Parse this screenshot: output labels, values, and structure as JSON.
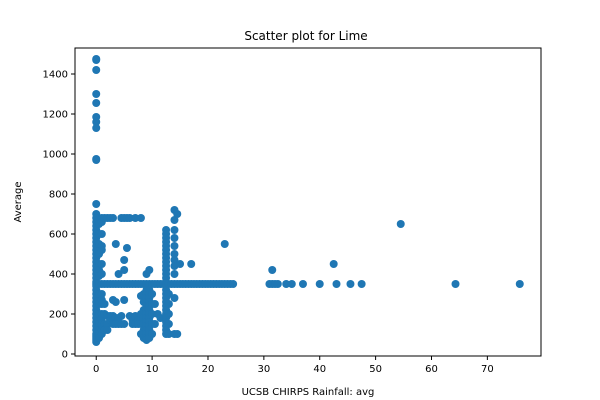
{
  "chart_data": {
    "type": "scatter",
    "title": "Scatter plot for Lime",
    "xlabel": "UCSB CHIRPS Rainfall: avg",
    "ylabel": "Average",
    "xlim": [
      -3.8,
      79.6
    ],
    "ylim": [
      -10,
      1530
    ],
    "xticks": [
      0,
      10,
      20,
      30,
      40,
      50,
      60,
      70
    ],
    "yticks": [
      0,
      200,
      400,
      600,
      800,
      1000,
      1200,
      1400
    ],
    "grid": false,
    "marker_color": "#1f77b4",
    "points": [
      [
        0,
        1475
      ],
      [
        0,
        1470
      ],
      [
        0,
        1420
      ],
      [
        0,
        1300
      ],
      [
        0,
        1255
      ],
      [
        0,
        1185
      ],
      [
        0,
        1160
      ],
      [
        0,
        1130
      ],
      [
        0,
        975
      ],
      [
        0,
        970
      ],
      [
        0,
        750
      ],
      [
        0,
        700
      ],
      [
        0,
        680
      ],
      [
        0,
        660
      ],
      [
        0,
        640
      ],
      [
        0,
        620
      ],
      [
        0,
        600
      ],
      [
        0,
        580
      ],
      [
        0,
        560
      ],
      [
        0,
        540
      ],
      [
        0,
        520
      ],
      [
        0,
        500
      ],
      [
        0,
        480
      ],
      [
        0,
        460
      ],
      [
        0,
        440
      ],
      [
        0,
        420
      ],
      [
        0,
        400
      ],
      [
        0,
        380
      ],
      [
        0,
        360
      ],
      [
        0,
        350
      ],
      [
        0,
        340
      ],
      [
        0,
        320
      ],
      [
        0,
        300
      ],
      [
        0,
        280
      ],
      [
        0,
        260
      ],
      [
        0,
        240
      ],
      [
        0,
        220
      ],
      [
        0,
        200
      ],
      [
        0,
        180
      ],
      [
        0,
        160
      ],
      [
        0,
        140
      ],
      [
        0,
        120
      ],
      [
        0,
        100
      ],
      [
        0,
        90
      ],
      [
        0,
        80
      ],
      [
        0,
        70
      ],
      [
        0,
        60
      ],
      [
        0.5,
        650
      ],
      [
        0.5,
        600
      ],
      [
        0.5,
        550
      ],
      [
        0.5,
        500
      ],
      [
        0.5,
        450
      ],
      [
        0.5,
        420
      ],
      [
        0.5,
        390
      ],
      [
        0.5,
        350
      ],
      [
        0.5,
        300
      ],
      [
        0.5,
        250
      ],
      [
        0.5,
        200
      ],
      [
        0.5,
        150
      ],
      [
        0.5,
        120
      ],
      [
        0.5,
        100
      ],
      [
        0.5,
        80
      ],
      [
        1,
        680
      ],
      [
        1,
        660
      ],
      [
        1,
        600
      ],
      [
        1,
        540
      ],
      [
        1,
        520
      ],
      [
        1,
        450
      ],
      [
        1,
        400
      ],
      [
        1,
        350
      ],
      [
        1,
        300
      ],
      [
        1,
        270
      ],
      [
        1,
        250
      ],
      [
        1,
        200
      ],
      [
        1,
        180
      ],
      [
        1,
        150
      ],
      [
        1,
        120
      ],
      [
        1,
        100
      ],
      [
        1.5,
        680
      ],
      [
        1.5,
        350
      ],
      [
        1.5,
        250
      ],
      [
        1.5,
        200
      ],
      [
        1.5,
        150
      ],
      [
        1.5,
        120
      ],
      [
        2,
        680
      ],
      [
        2,
        350
      ],
      [
        2,
        190
      ],
      [
        2,
        150
      ],
      [
        2,
        120
      ],
      [
        2.5,
        680
      ],
      [
        2.5,
        350
      ],
      [
        2.5,
        190
      ],
      [
        2.5,
        170
      ],
      [
        3,
        680
      ],
      [
        3,
        350
      ],
      [
        3,
        270
      ],
      [
        3,
        190
      ],
      [
        3,
        170
      ],
      [
        3,
        150
      ],
      [
        3.5,
        550
      ],
      [
        3.5,
        350
      ],
      [
        3.5,
        260
      ],
      [
        3.5,
        180
      ],
      [
        3.5,
        150
      ],
      [
        4,
        400
      ],
      [
        4,
        350
      ],
      [
        4,
        180
      ],
      [
        4,
        150
      ],
      [
        4.5,
        680
      ],
      [
        4.5,
        350
      ],
      [
        4.5,
        190
      ],
      [
        4.5,
        150
      ],
      [
        5,
        680
      ],
      [
        5,
        470
      ],
      [
        5,
        420
      ],
      [
        5,
        350
      ],
      [
        5,
        270
      ],
      [
        5,
        150
      ],
      [
        5.5,
        680
      ],
      [
        5.5,
        530
      ],
      [
        5.5,
        350
      ],
      [
        6,
        680
      ],
      [
        6,
        350
      ],
      [
        6,
        190
      ],
      [
        6.5,
        350
      ],
      [
        6.5,
        170
      ],
      [
        6.5,
        150
      ],
      [
        7,
        680
      ],
      [
        7,
        350
      ],
      [
        7,
        190
      ],
      [
        7,
        150
      ],
      [
        7.5,
        350
      ],
      [
        7.5,
        170
      ],
      [
        7.5,
        150
      ],
      [
        8,
        680
      ],
      [
        8,
        350
      ],
      [
        8,
        290
      ],
      [
        8,
        200
      ],
      [
        8,
        150
      ],
      [
        8,
        100
      ],
      [
        8.5,
        350
      ],
      [
        8.5,
        300
      ],
      [
        8.5,
        260
      ],
      [
        8.5,
        220
      ],
      [
        8.5,
        180
      ],
      [
        8.5,
        150
      ],
      [
        8.5,
        120
      ],
      [
        8.5,
        100
      ],
      [
        8.5,
        80
      ],
      [
        9,
        400
      ],
      [
        9,
        350
      ],
      [
        9,
        320
      ],
      [
        9,
        300
      ],
      [
        9,
        280
      ],
      [
        9,
        260
      ],
      [
        9,
        240
      ],
      [
        9,
        220
      ],
      [
        9,
        200
      ],
      [
        9,
        180
      ],
      [
        9,
        160
      ],
      [
        9,
        140
      ],
      [
        9,
        120
      ],
      [
        9,
        100
      ],
      [
        9,
        80
      ],
      [
        9,
        70
      ],
      [
        9.5,
        420
      ],
      [
        9.5,
        350
      ],
      [
        9.5,
        320
      ],
      [
        9.5,
        300
      ],
      [
        9.5,
        280
      ],
      [
        9.5,
        260
      ],
      [
        9.5,
        240
      ],
      [
        9.5,
        220
      ],
      [
        9.5,
        200
      ],
      [
        9.5,
        180
      ],
      [
        9.5,
        160
      ],
      [
        9.5,
        140
      ],
      [
        9.5,
        120
      ],
      [
        9.5,
        100
      ],
      [
        9.5,
        80
      ],
      [
        10,
        350
      ],
      [
        10,
        300
      ],
      [
        10,
        250
      ],
      [
        10,
        200
      ],
      [
        10,
        150
      ],
      [
        10,
        100
      ],
      [
        10.5,
        350
      ],
      [
        10.5,
        250
      ],
      [
        10.5,
        150
      ],
      [
        11,
        350
      ],
      [
        11,
        200
      ],
      [
        11.5,
        350
      ],
      [
        11.5,
        180
      ],
      [
        12,
        350
      ],
      [
        12.5,
        620
      ],
      [
        12.5,
        600
      ],
      [
        12.5,
        580
      ],
      [
        12.5,
        560
      ],
      [
        12.5,
        540
      ],
      [
        12.5,
        520
      ],
      [
        12.5,
        500
      ],
      [
        12.5,
        480
      ],
      [
        12.5,
        460
      ],
      [
        12.5,
        440
      ],
      [
        12.5,
        420
      ],
      [
        12.5,
        400
      ],
      [
        12.5,
        380
      ],
      [
        12.5,
        350
      ],
      [
        12.5,
        320
      ],
      [
        12.5,
        300
      ],
      [
        12.5,
        280
      ],
      [
        12.5,
        260
      ],
      [
        12.5,
        240
      ],
      [
        12.5,
        220
      ],
      [
        12.5,
        200
      ],
      [
        12.5,
        180
      ],
      [
        12.5,
        160
      ],
      [
        12.5,
        140
      ],
      [
        12.5,
        120
      ],
      [
        12.5,
        100
      ],
      [
        13,
        350
      ],
      [
        13,
        300
      ],
      [
        13,
        250
      ],
      [
        13,
        200
      ],
      [
        13,
        150
      ],
      [
        13,
        100
      ],
      [
        13.5,
        350
      ],
      [
        14,
        720
      ],
      [
        14,
        670
      ],
      [
        14,
        620
      ],
      [
        14,
        580
      ],
      [
        14,
        540
      ],
      [
        14,
        500
      ],
      [
        14,
        470
      ],
      [
        14,
        440
      ],
      [
        14,
        400
      ],
      [
        14,
        350
      ],
      [
        14,
        280
      ],
      [
        14,
        100
      ],
      [
        14.5,
        700
      ],
      [
        14.5,
        350
      ],
      [
        14.5,
        100
      ],
      [
        15,
        450
      ],
      [
        15,
        350
      ],
      [
        15.5,
        350
      ],
      [
        16,
        350
      ],
      [
        16.5,
        350
      ],
      [
        17,
        450
      ],
      [
        17,
        350
      ],
      [
        17.5,
        350
      ],
      [
        18,
        350
      ],
      [
        18.5,
        350
      ],
      [
        19,
        350
      ],
      [
        19.5,
        350
      ],
      [
        20,
        350
      ],
      [
        20.5,
        350
      ],
      [
        21,
        350
      ],
      [
        21.5,
        350
      ],
      [
        22,
        350
      ],
      [
        22.5,
        350
      ],
      [
        23,
        550
      ],
      [
        23,
        350
      ],
      [
        23.5,
        350
      ],
      [
        24,
        350
      ],
      [
        24.5,
        350
      ],
      [
        31,
        350
      ],
      [
        31.5,
        420
      ],
      [
        31.5,
        350
      ],
      [
        32,
        350
      ],
      [
        32.5,
        350
      ],
      [
        34,
        350
      ],
      [
        35,
        350
      ],
      [
        37,
        350
      ],
      [
        40,
        350
      ],
      [
        42.5,
        450
      ],
      [
        43,
        350
      ],
      [
        45.5,
        350
      ],
      [
        47.5,
        350
      ],
      [
        54.5,
        650
      ],
      [
        64.3,
        350
      ],
      [
        75.8,
        350
      ]
    ]
  }
}
